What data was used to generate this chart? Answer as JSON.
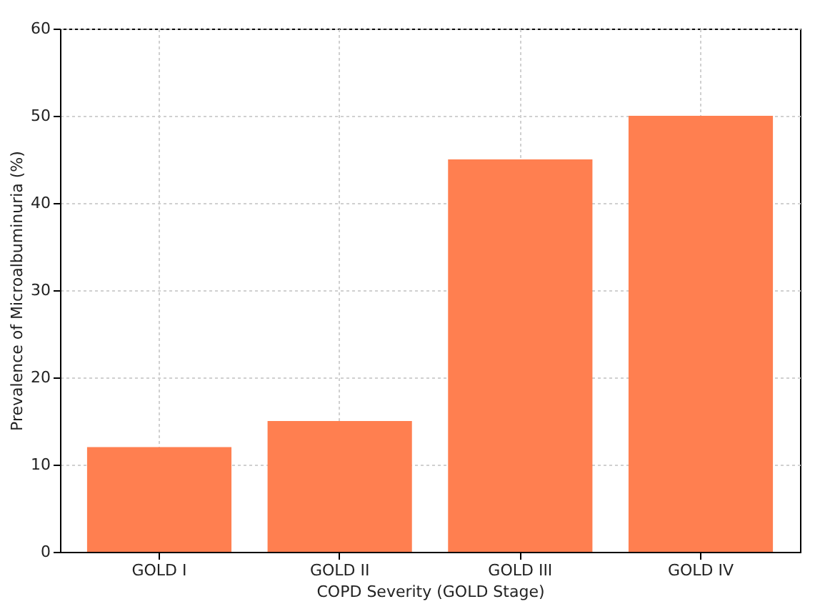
{
  "chart_data": {
    "type": "bar",
    "xlabel": "COPD Severity (GOLD Stage)",
    "ylabel": "Prevalence of Microalbuminuria (%)",
    "categories": [
      "GOLD I",
      "GOLD II",
      "GOLD III",
      "GOLD IV"
    ],
    "values": [
      12,
      15,
      45,
      50
    ],
    "color": "#ff7f50",
    "ylim": [
      0,
      60
    ],
    "yticks": [
      0,
      10,
      20,
      30,
      40,
      50,
      60
    ],
    "grid": true
  }
}
